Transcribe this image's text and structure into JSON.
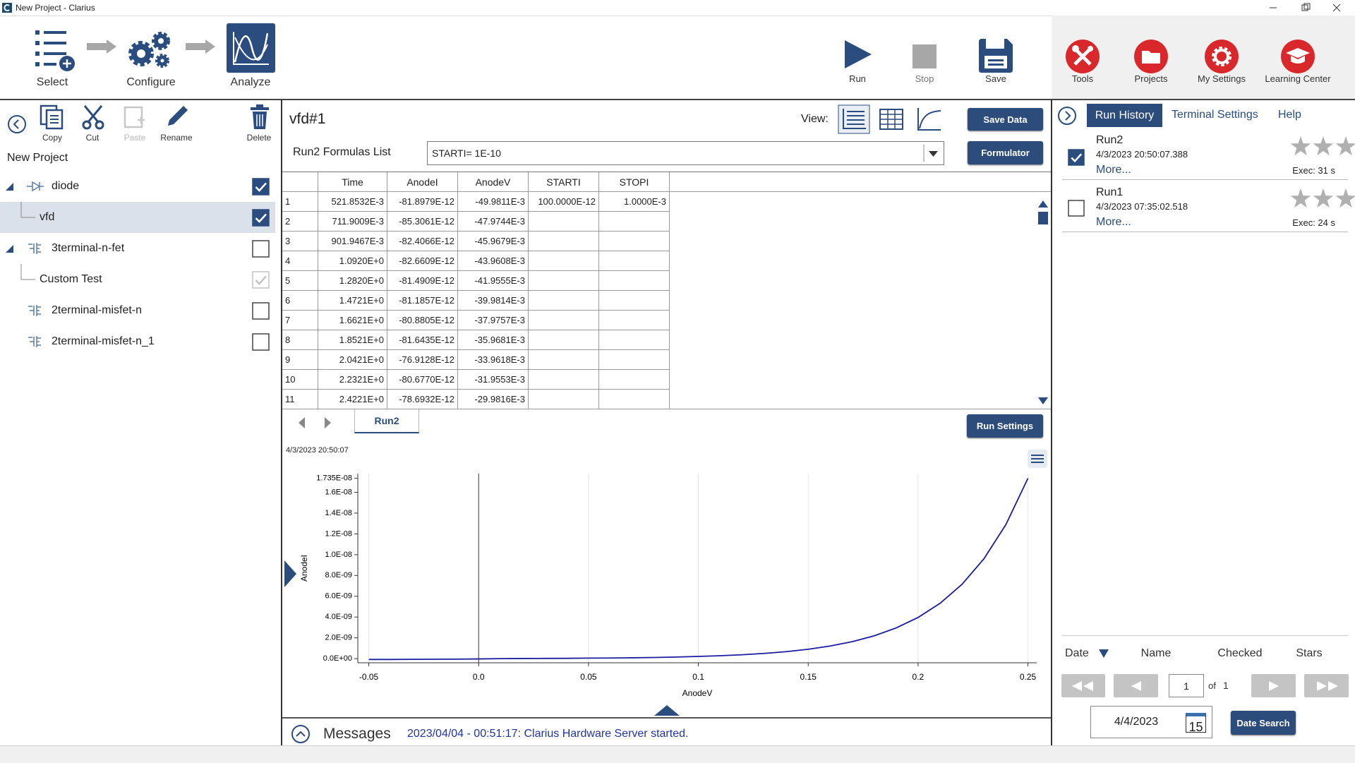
{
  "window": {
    "title": "New Project - Clarius"
  },
  "toolbar": {
    "steps": [
      "Select",
      "Configure",
      "Analyze"
    ],
    "actions": [
      "Run",
      "Stop",
      "Save"
    ],
    "tools": [
      "Tools",
      "Projects",
      "My Settings",
      "Learning Center"
    ]
  },
  "project_panel": {
    "buttons": [
      "Copy",
      "Cut",
      "Paste",
      "Rename",
      "Delete"
    ],
    "project_name": "New Project",
    "tree": [
      {
        "label": "diode",
        "level": 0,
        "expanded": true,
        "checked": true
      },
      {
        "label": "vfd",
        "level": 1,
        "checked": true,
        "selected": true
      },
      {
        "label": "3terminal-n-fet",
        "level": 0,
        "expanded": true,
        "checked": false
      },
      {
        "label": "Custom Test",
        "level": 1,
        "checked": true,
        "disabled": true
      },
      {
        "label": "2terminal-misfet-n",
        "level": 0,
        "checked": false
      },
      {
        "label": "2terminal-misfet-n_1",
        "level": 0,
        "checked": false
      }
    ]
  },
  "sheet": {
    "title": "vfd#1",
    "view_label": "View:",
    "save_button": "Save Data",
    "formulator_button": "Formulator",
    "formulas_label": "Run2 Formulas List",
    "formula": "STARTI= 1E-10",
    "columns": [
      "Time",
      "AnodeI",
      "AnodeV",
      "STARTI",
      "STOPI"
    ],
    "rows": [
      [
        "1",
        "521.8532E-3",
        "-81.8979E-12",
        "-49.9811E-3",
        "100.0000E-12",
        "1.0000E-3"
      ],
      [
        "2",
        "711.9009E-3",
        "-85.3061E-12",
        "-47.9744E-3"
      ],
      [
        "3",
        "901.9467E-3",
        "-82.4066E-12",
        "-45.9679E-3"
      ],
      [
        "4",
        "1.0920E+0",
        "-82.6609E-12",
        "-43.9608E-3"
      ],
      [
        "5",
        "1.2820E+0",
        "-81.4909E-12",
        "-41.9555E-3"
      ],
      [
        "6",
        "1.4721E+0",
        "-81.1857E-12",
        "-39.9814E-3"
      ],
      [
        "7",
        "1.6621E+0",
        "-80.8805E-12",
        "-37.9757E-3"
      ],
      [
        "8",
        "1.8521E+0",
        "-81.6435E-12",
        "-35.9681E-3"
      ],
      [
        "9",
        "2.0421E+0",
        "-76.9128E-12",
        "-33.9618E-3"
      ],
      [
        "10",
        "2.2321E+0",
        "-80.6770E-12",
        "-31.9553E-3"
      ],
      [
        "11",
        "2.4221E+0",
        "-78.6932E-12",
        "-29.9816E-3"
      ]
    ],
    "tab": "Run2",
    "run_settings_button": "Run Settings",
    "timestamp": "4/3/2023 20:50:07"
  },
  "chart_data": {
    "type": "line",
    "x_label": "AnodeV",
    "y_label": "AnodeI",
    "color": "#1c1ca0",
    "grid": "x",
    "xlim": [
      -0.055,
      0.254
    ],
    "ylim": [
      -4e-10,
      1.78e-08
    ],
    "xticks": [
      -0.05,
      {
        "value": 0,
        "label": "0.0"
      },
      0.05,
      0.1,
      0.15,
      0.2,
      0.25
    ],
    "yticks": [
      {
        "value": 0,
        "label": "0.0E+00"
      },
      {
        "value": 2e-09,
        "label": "2.0E-09"
      },
      {
        "value": 4e-09,
        "label": "4.0E-09"
      },
      {
        "value": 6e-09,
        "label": "6.0E-09"
      },
      {
        "value": 8e-09,
        "label": "8.0E-09"
      },
      {
        "value": 1e-08,
        "label": "1.0E-08"
      },
      {
        "value": 1.2e-08,
        "label": "1.2E-08"
      },
      {
        "value": 1.4e-08,
        "label": "1.4E-08"
      },
      {
        "value": 1.6e-08,
        "label": "1.6E-08"
      },
      {
        "value": 1.735e-08,
        "label": "1.735E-08"
      }
    ],
    "x": [
      -0.05,
      -0.04,
      -0.03,
      -0.02,
      -0.01,
      0,
      0.01,
      0.02,
      0.03,
      0.04,
      0.05,
      0.06,
      0.07,
      0.08,
      0.09,
      0.1,
      0.11,
      0.12,
      0.13,
      0.14,
      0.15,
      0.16,
      0.17,
      0.18,
      0.19,
      0.2,
      0.21,
      0.22,
      0.23,
      0.24,
      0.25
    ],
    "values": [
      -8e-11,
      -8e-11,
      -7e-11,
      -6e-11,
      -5e-11,
      -3e-11,
      0,
      1e-11,
      2e-11,
      3e-11,
      5e-11,
      6e-11,
      8e-11,
      1.1e-10,
      1.5e-10,
      2.1e-10,
      2.8e-10,
      3.7e-10,
      5e-10,
      6.7e-10,
      9e-10,
      1.21e-09,
      1.63e-09,
      2.19e-09,
      2.95e-09,
      3.96e-09,
      5.32e-09,
      7.15e-09,
      9.61e-09,
      1.291e-08,
      1.735e-08
    ]
  },
  "messages": {
    "title": "Messages",
    "text": "2023/04/04 - 00:51:17: Clarius Hardware Server started."
  },
  "run_history": {
    "tabs": [
      "Run History",
      "Terminal Settings",
      "Help"
    ],
    "runs": [
      {
        "name": "Run2",
        "date": "4/3/2023 20:50:07.388",
        "more": "More...",
        "exec": "Exec: 31 s",
        "checked": true
      },
      {
        "name": "Run1",
        "date": "4/3/2023 07:35:02.518",
        "more": "More...",
        "exec": "Exec: 24 s",
        "checked": false
      }
    ],
    "sort_headers": [
      "Date",
      "Name",
      "Checked",
      "Stars"
    ],
    "page": "1",
    "of": "of",
    "pages": "1",
    "date": "4/4/2023",
    "calendar_day": "15",
    "date_search_button": "Date Search"
  }
}
